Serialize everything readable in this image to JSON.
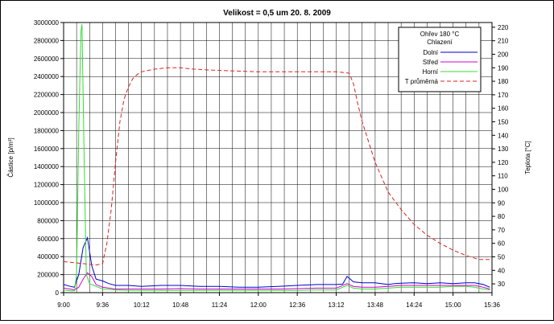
{
  "chart_data": {
    "type": "line",
    "title": "Velikost = 0,5 um   20. 8. 2009",
    "ylabel": "Částice [p/m³]",
    "y2label": "Teplota [°C]",
    "xlabel": "",
    "x_ticks": [
      "9:00",
      "9:36",
      "10:12",
      "10:48",
      "11:24",
      "12:00",
      "12:36",
      "13:12",
      "13:48",
      "14:24",
      "15:00",
      "15:36"
    ],
    "xlim_minutes": [
      540,
      936
    ],
    "y_ticks": [
      0,
      200000,
      400000,
      600000,
      800000,
      1000000,
      1200000,
      1400000,
      1600000,
      1800000,
      2000000,
      2200000,
      2400000,
      2600000,
      2800000,
      3000000
    ],
    "ylim": [
      0,
      3000000
    ],
    "y2_ticks": [
      30,
      40,
      50,
      60,
      70,
      80,
      90,
      100,
      110,
      120,
      130,
      140,
      150,
      160,
      170,
      180,
      190,
      200,
      210,
      220
    ],
    "y2lim": [
      23.5,
      223.5
    ],
    "grid": true,
    "legend": {
      "placement": "top-right",
      "headings": [
        "Ohřev 180 °C",
        "Chlazení"
      ]
    },
    "series": [
      {
        "name": "Dolní",
        "color": "#0000cc",
        "dash": "solid",
        "axis": "left",
        "x": [
          "9:00",
          "9:06",
          "9:10",
          "9:14",
          "9:18",
          "9:22",
          "9:26",
          "9:30",
          "9:36",
          "9:42",
          "9:48",
          "10:00",
          "10:12",
          "10:30",
          "10:48",
          "11:06",
          "11:24",
          "11:42",
          "12:00",
          "12:18",
          "12:36",
          "12:54",
          "13:12",
          "13:18",
          "13:22",
          "13:28",
          "13:36",
          "13:48",
          "14:00",
          "14:06",
          "14:12",
          "14:24",
          "14:36",
          "14:48",
          "15:00",
          "15:12",
          "15:20",
          "15:28",
          "15:34"
        ],
        "values": [
          90000,
          70000,
          60000,
          200000,
          500000,
          610000,
          300000,
          150000,
          130000,
          100000,
          80000,
          80000,
          70000,
          80000,
          80000,
          70000,
          70000,
          60000,
          60000,
          70000,
          80000,
          90000,
          90000,
          95000,
          180000,
          120000,
          110000,
          110000,
          90000,
          100000,
          105000,
          110000,
          100000,
          110000,
          100000,
          110000,
          110000,
          90000,
          60000
        ]
      },
      {
        "name": "Střed",
        "color": "#cc00cc",
        "dash": "solid",
        "axis": "left",
        "x": [
          "9:00",
          "9:06",
          "9:10",
          "9:14",
          "9:18",
          "9:22",
          "9:26",
          "9:30",
          "9:36",
          "9:48",
          "10:00",
          "10:12",
          "10:30",
          "10:48",
          "11:06",
          "11:24",
          "11:42",
          "12:00",
          "12:18",
          "12:36",
          "12:54",
          "13:12",
          "13:22",
          "13:28",
          "13:36",
          "13:48",
          "14:00",
          "14:12",
          "14:24",
          "14:36",
          "14:48",
          "15:00",
          "15:12",
          "15:20",
          "15:28",
          "15:34"
        ],
        "values": [
          50000,
          40000,
          30000,
          60000,
          150000,
          220000,
          180000,
          90000,
          60000,
          40000,
          40000,
          40000,
          40000,
          45000,
          40000,
          40000,
          40000,
          40000,
          40000,
          45000,
          50000,
          50000,
          100000,
          70000,
          60000,
          60000,
          70000,
          80000,
          80000,
          80000,
          80000,
          80000,
          80000,
          80000,
          60000,
          40000
        ]
      },
      {
        "name": "Horní",
        "color": "#33dd33",
        "dash": "solid",
        "axis": "left",
        "x": [
          "9:00",
          "9:06",
          "9:10",
          "9:12",
          "9:14",
          "9:16",
          "9:17",
          "9:19",
          "9:21",
          "9:24",
          "9:28",
          "9:32",
          "9:36",
          "9:48",
          "10:00",
          "10:12",
          "10:30",
          "10:48",
          "11:06",
          "11:24",
          "11:42",
          "12:00",
          "12:18",
          "12:36",
          "12:54",
          "13:12",
          "13:22",
          "13:28",
          "13:36",
          "13:48",
          "14:00",
          "14:12",
          "14:24",
          "14:36",
          "14:48",
          "15:00",
          "15:12",
          "15:20",
          "15:28",
          "15:34"
        ],
        "values": [
          30000,
          20000,
          20000,
          200000,
          1800000,
          2900000,
          2980000,
          1500000,
          200000,
          100000,
          80000,
          60000,
          40000,
          30000,
          25000,
          25000,
          25000,
          25000,
          25000,
          25000,
          25000,
          25000,
          25000,
          25000,
          30000,
          30000,
          80000,
          50000,
          40000,
          40000,
          50000,
          60000,
          60000,
          60000,
          60000,
          70000,
          70000,
          60000,
          40000,
          30000
        ]
      },
      {
        "name": "T průměrná",
        "color": "#dd2222",
        "dash": "dashed",
        "axis": "right",
        "x": [
          "8:54",
          "9:06",
          "9:18",
          "9:30",
          "9:36",
          "9:40",
          "9:44",
          "9:48",
          "9:52",
          "9:56",
          "10:00",
          "10:04",
          "10:08",
          "10:12",
          "10:24",
          "10:36",
          "10:48",
          "11:00",
          "11:24",
          "12:00",
          "12:36",
          "13:00",
          "13:12",
          "13:24",
          "13:28",
          "13:32",
          "13:36",
          "13:40",
          "13:44",
          "13:48",
          "14:00",
          "14:12",
          "14:24",
          "14:36",
          "14:48",
          "15:00",
          "15:12",
          "15:24",
          "15:34"
        ],
        "values": [
          47,
          46,
          45,
          44,
          45,
          60,
          85,
          120,
          150,
          167,
          176,
          182,
          185,
          187,
          189,
          190,
          190,
          189,
          188,
          187,
          187,
          187,
          187,
          186,
          178,
          163,
          150,
          140,
          130,
          120,
          98,
          85,
          74,
          66,
          60,
          55,
          51,
          48,
          48
        ]
      }
    ]
  }
}
